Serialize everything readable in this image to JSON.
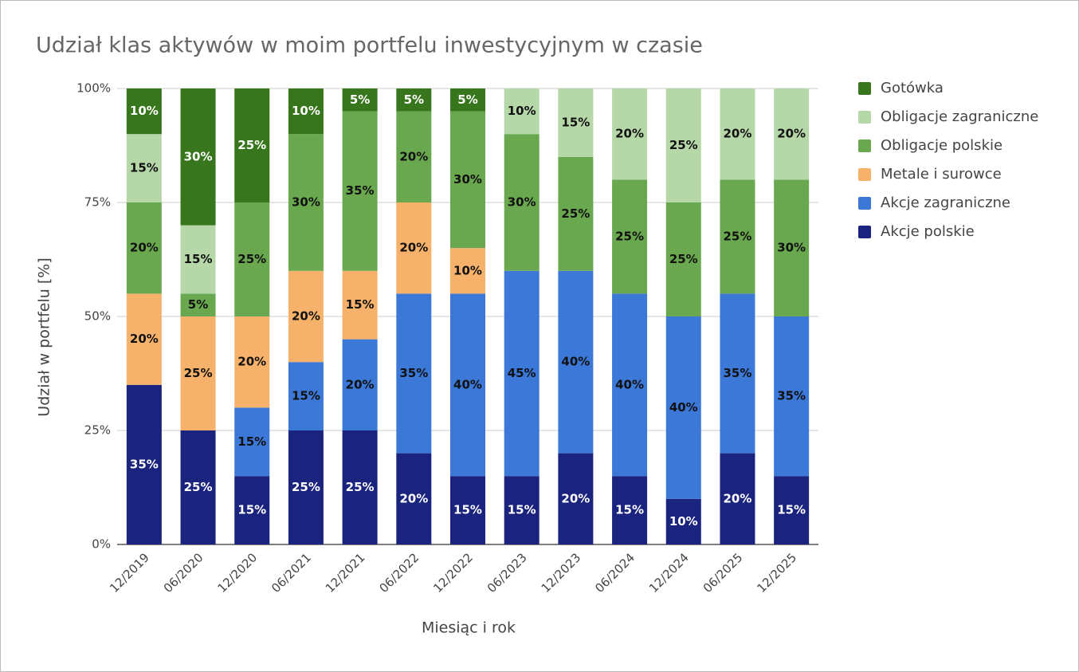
{
  "chart_data": {
    "type": "stacked_bar",
    "title": "Udział klas aktywów w moim portfelu inwestycyjnym w czasie",
    "x_label": "Miesiąc i rok",
    "y_label": "Udział w portfelu [%]",
    "categories": [
      "12/2019",
      "06/2020",
      "12/2020",
      "06/2021",
      "12/2021",
      "06/2022",
      "12/2022",
      "06/2023",
      "12/2023",
      "06/2024",
      "12/2024",
      "06/2025",
      "12/2025"
    ],
    "series": [
      {
        "name": "Akcje polskie",
        "color": "#1a237e",
        "values": [
          35,
          25,
          15,
          25,
          25,
          20,
          15,
          15,
          20,
          15,
          10,
          20,
          15
        ],
        "value_labels": [
          "35%",
          "25%",
          "15%",
          "25%",
          "25%",
          "20%",
          "15%",
          "15%",
          "20%",
          "15%",
          "10%",
          "20%",
          "15%"
        ]
      },
      {
        "name": "Akcje zagraniczne",
        "color": "#3c78d8",
        "values": [
          0,
          0,
          15,
          15,
          20,
          35,
          40,
          45,
          40,
          40,
          40,
          35,
          35
        ],
        "value_labels": [
          null,
          null,
          "15%",
          "15%",
          "20%",
          "35%",
          "40%",
          "45%",
          "40%",
          "40%",
          "40%",
          "35%",
          "35%"
        ]
      },
      {
        "name": "Metale i surowce",
        "color": "#f6b26b",
        "values": [
          20,
          25,
          20,
          20,
          15,
          20,
          10,
          0,
          0,
          0,
          0,
          0,
          0
        ],
        "value_labels": [
          "20%",
          "25%",
          "20%",
          "20%",
          "15%",
          "20%",
          "10%",
          null,
          null,
          null,
          null,
          null,
          null
        ]
      },
      {
        "name": "Obligacje polskie",
        "color": "#6aa84f",
        "values": [
          20,
          5,
          25,
          30,
          35,
          20,
          30,
          30,
          25,
          25,
          25,
          25,
          30
        ],
        "value_labels": [
          "20%",
          "5%",
          "25%",
          "30%",
          "35%",
          "20%",
          "30%",
          "30%",
          "25%",
          "25%",
          "25%",
          "25%",
          "30%"
        ]
      },
      {
        "name": "Obligacje zagraniczne",
        "color": "#b6d7a8",
        "values": [
          15,
          15,
          0,
          0,
          0,
          0,
          0,
          10,
          15,
          20,
          25,
          20,
          20
        ],
        "value_labels": [
          "15%",
          "15%",
          null,
          null,
          null,
          null,
          null,
          "10%",
          "15%",
          "20%",
          "25%",
          "20%",
          "20%"
        ]
      },
      {
        "name": "Gotówka",
        "color": "#38761d",
        "values": [
          10,
          30,
          25,
          10,
          5,
          5,
          5,
          0,
          0,
          0,
          0,
          0,
          0
        ],
        "value_labels": [
          "10%",
          "30%",
          "25%",
          "10%",
          "5%",
          "5%",
          "5%",
          null,
          null,
          null,
          null,
          null,
          null
        ]
      }
    ],
    "ylim": [
      0,
      100
    ],
    "yticks": [
      {
        "value": 0,
        "label": "0%"
      },
      {
        "value": 25,
        "label": "25%"
      },
      {
        "value": 50,
        "label": "50%"
      },
      {
        "value": 75,
        "label": "75%"
      },
      {
        "value": 100,
        "label": "100%"
      }
    ],
    "grid": true,
    "legend": "right"
  }
}
